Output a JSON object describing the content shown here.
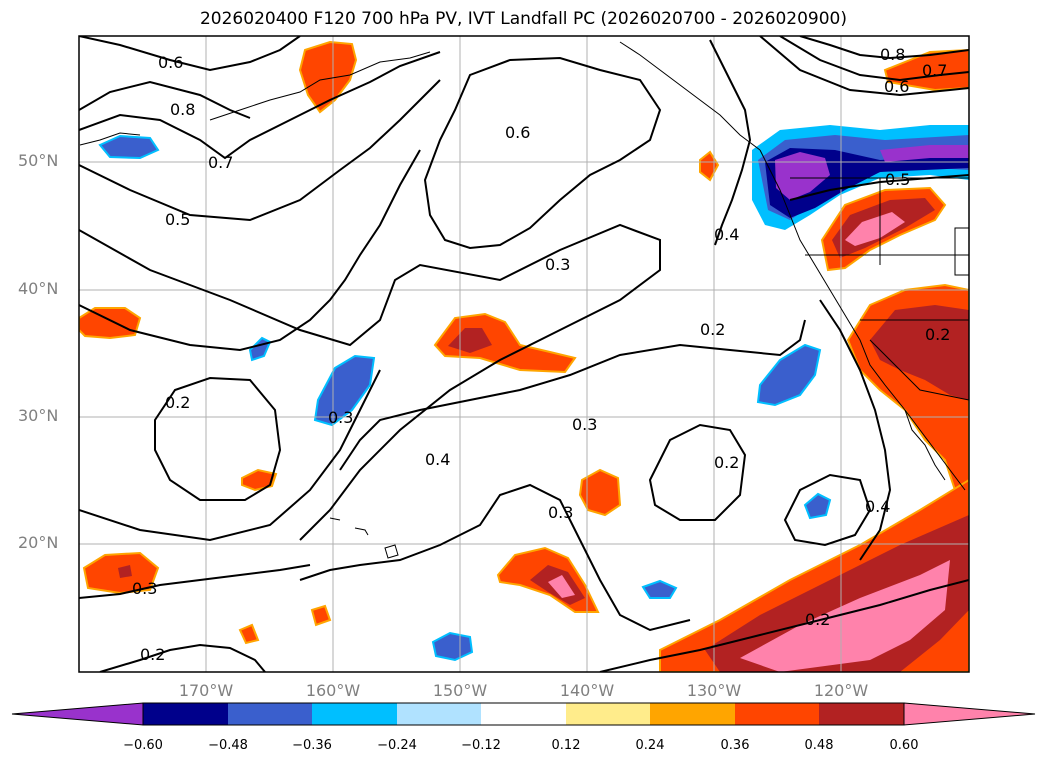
{
  "title": "2026020400 F120 700 hPa PV, IVT Landfall PC (2026020700 - 2026020900)",
  "map": {
    "projection": "lat-lon",
    "lon_range": [
      -180,
      -110
    ],
    "lat_range": [
      10,
      60
    ],
    "gridlines": true,
    "lat_ticks": [
      "50°N",
      "40°N",
      "30°N",
      "20°N"
    ],
    "lon_ticks": [
      "170°W",
      "160°W",
      "150°W",
      "140°W",
      "130°W",
      "120°W"
    ],
    "coastlines": true,
    "state_borders": true
  },
  "contours": {
    "variable": "700 hPa PV",
    "color": "#000000",
    "labels": [
      "0.6",
      "0.8",
      "0.7",
      "0.5",
      "0.6",
      "0.4",
      "0.3",
      "0.2",
      "0.3",
      "0.4",
      "0.3",
      "0.2",
      "0.3",
      "0.4",
      "0.2",
      "0.3",
      "0.2",
      "0.2",
      "0.8",
      "0.7",
      "0.6",
      "0.5",
      "0.2"
    ]
  },
  "colorbar": {
    "extend": "both",
    "ticks": [
      "−0.60",
      "−0.48",
      "−0.36",
      "−0.24",
      "−0.12",
      "0.12",
      "0.24",
      "0.36",
      "0.48",
      "0.60"
    ],
    "colors": [
      "#9932cc",
      "#00008b",
      "#3a5fcd",
      "#00bfff",
      "#b0e2ff",
      "#ffffff",
      "#ffec8b",
      "#ffa500",
      "#ff4500",
      "#b22222",
      "#ff82ab"
    ]
  }
}
